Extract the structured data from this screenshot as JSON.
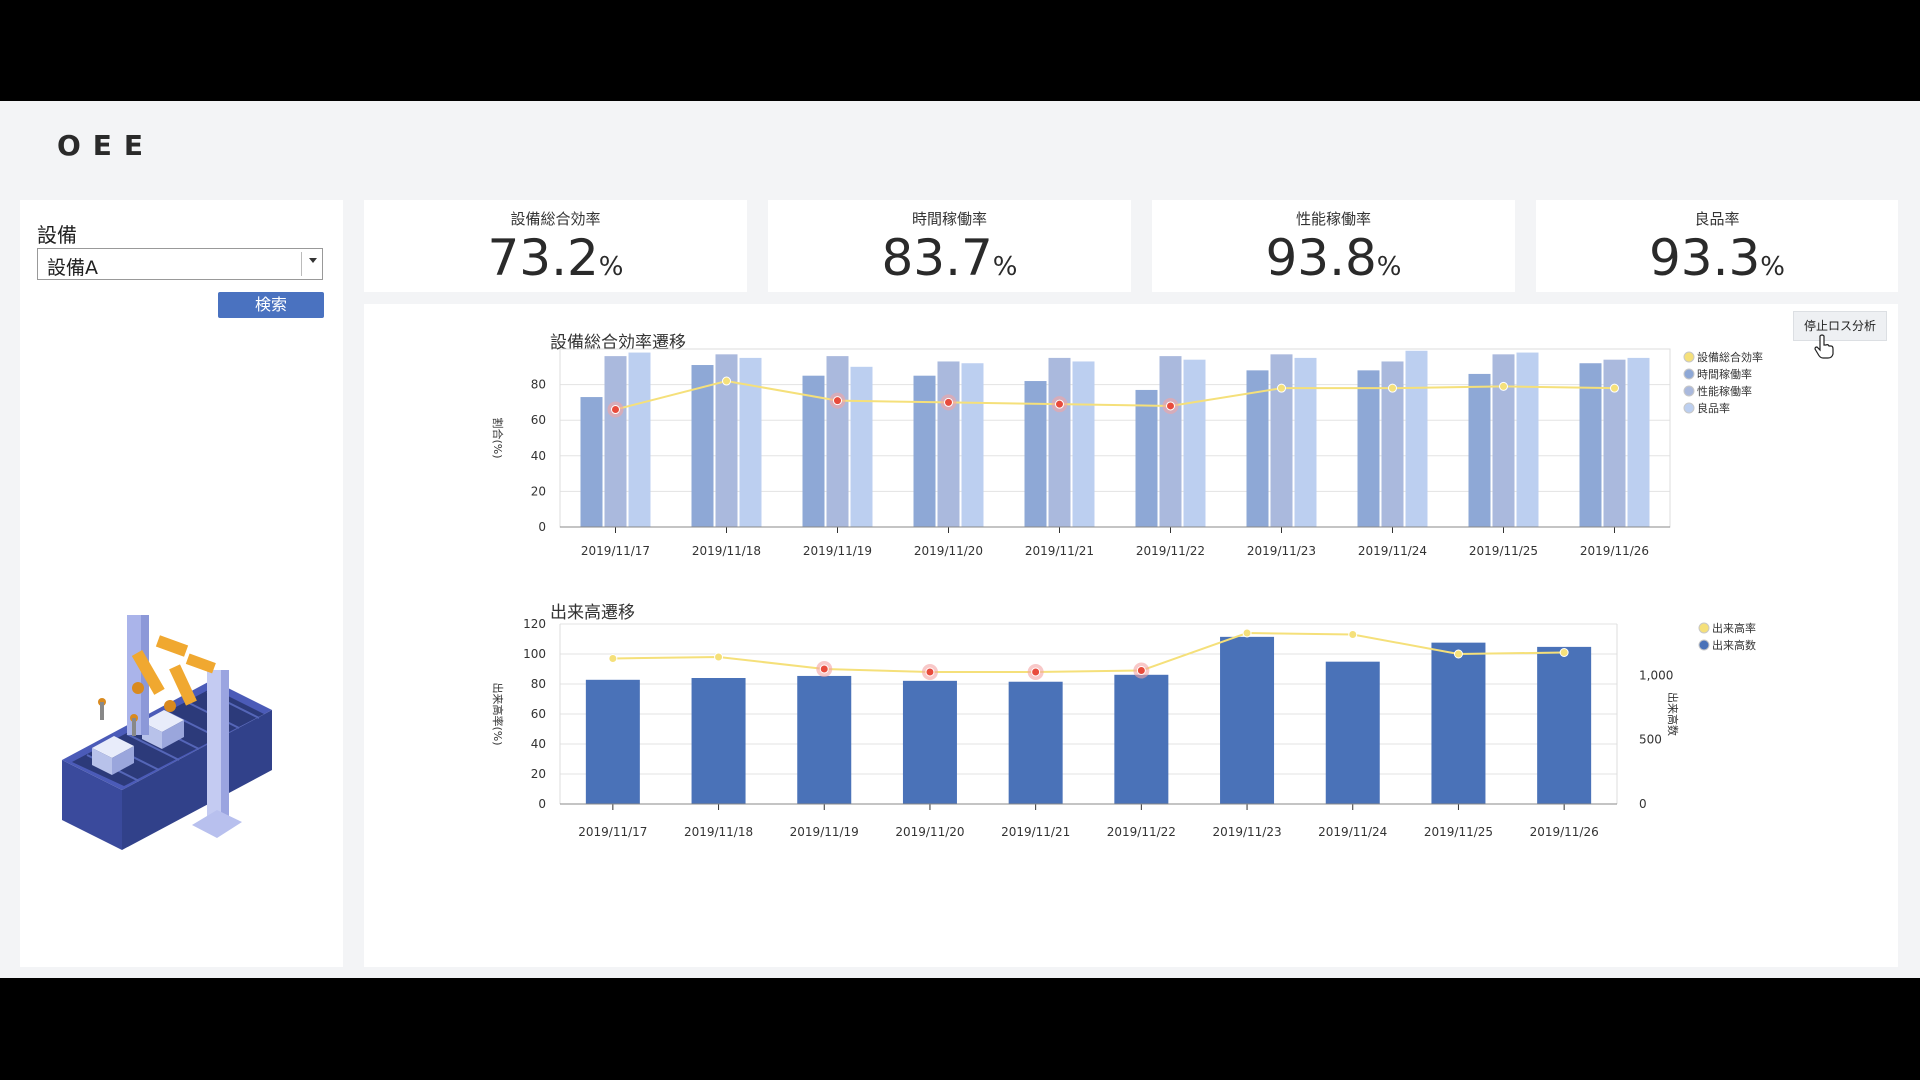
{
  "app": {
    "title": "OEE"
  },
  "equipment": {
    "label": "設備",
    "selected": "設備A",
    "search_label": "検索"
  },
  "kpis": [
    {
      "label": "設備総合効率",
      "value": "73.2",
      "unit": "%"
    },
    {
      "label": "時間稼働率",
      "value": "83.7",
      "unit": "%"
    },
    {
      "label": "性能稼働率",
      "value": "93.8",
      "unit": "%"
    },
    {
      "label": "良品率",
      "value": "93.3",
      "unit": "%"
    }
  ],
  "stop_loss_label": "停止ロス分析",
  "chart_data": [
    {
      "type": "bar",
      "title": "設備総合効率遷移",
      "ylabel": "割合(%)",
      "xlabel": "",
      "ylim": [
        0,
        100
      ],
      "yticks": [
        0,
        20,
        40,
        60,
        80
      ],
      "categories": [
        "2019/11/17",
        "2019/11/18",
        "2019/11/19",
        "2019/11/20",
        "2019/11/21",
        "2019/11/22",
        "2019/11/23",
        "2019/11/24",
        "2019/11/25",
        "2019/11/26"
      ],
      "series": [
        {
          "name": "設備総合効率",
          "kind": "line",
          "color": "#f5e07a",
          "values": [
            66,
            82,
            71,
            70,
            69,
            68,
            78,
            78,
            79,
            78
          ]
        },
        {
          "name": "時間稼働率",
          "kind": "bar",
          "color": "#8ea8d6",
          "values": [
            73,
            91,
            85,
            85,
            82,
            77,
            88,
            88,
            86,
            92
          ]
        },
        {
          "name": "性能稼働率",
          "kind": "bar",
          "color": "#aab9dd",
          "values": [
            96,
            97,
            96,
            93,
            95,
            96,
            97,
            93,
            97,
            94
          ]
        },
        {
          "name": "良品率",
          "kind": "bar",
          "color": "#bccff0",
          "values": [
            98,
            95,
            90,
            92,
            93,
            94,
            95,
            99,
            98,
            95
          ]
        }
      ],
      "highlight_below": 75,
      "legend": "right",
      "grid": true
    },
    {
      "type": "bar",
      "title": "出来高遷移",
      "ylabel": "出来高率(%)",
      "y2label": "出来高数",
      "ylim": [
        0,
        120
      ],
      "yticks": [
        0,
        20,
        40,
        60,
        80,
        100,
        120
      ],
      "y2lim": [
        0,
        1400
      ],
      "y2ticks": [
        "0",
        "500",
        "1,000"
      ],
      "categories": [
        "2019/11/17",
        "2019/11/18",
        "2019/11/19",
        "2019/11/20",
        "2019/11/21",
        "2019/11/22",
        "2019/11/23",
        "2019/11/24",
        "2019/11/25",
        "2019/11/26"
      ],
      "series": [
        {
          "name": "出来高率",
          "kind": "line",
          "color": "#f5e07a",
          "axis": "left",
          "values": [
            97,
            98,
            90,
            88,
            88,
            89,
            114,
            113,
            100,
            101
          ]
        },
        {
          "name": "出来高数",
          "kind": "bar",
          "color": "#4a72b8",
          "axis": "right",
          "values": [
            966,
            980,
            996,
            958,
            951,
            1005,
            1300,
            1107,
            1255,
            1222
          ]
        }
      ],
      "highlight_below": 95,
      "legend": "right",
      "grid": true
    }
  ]
}
